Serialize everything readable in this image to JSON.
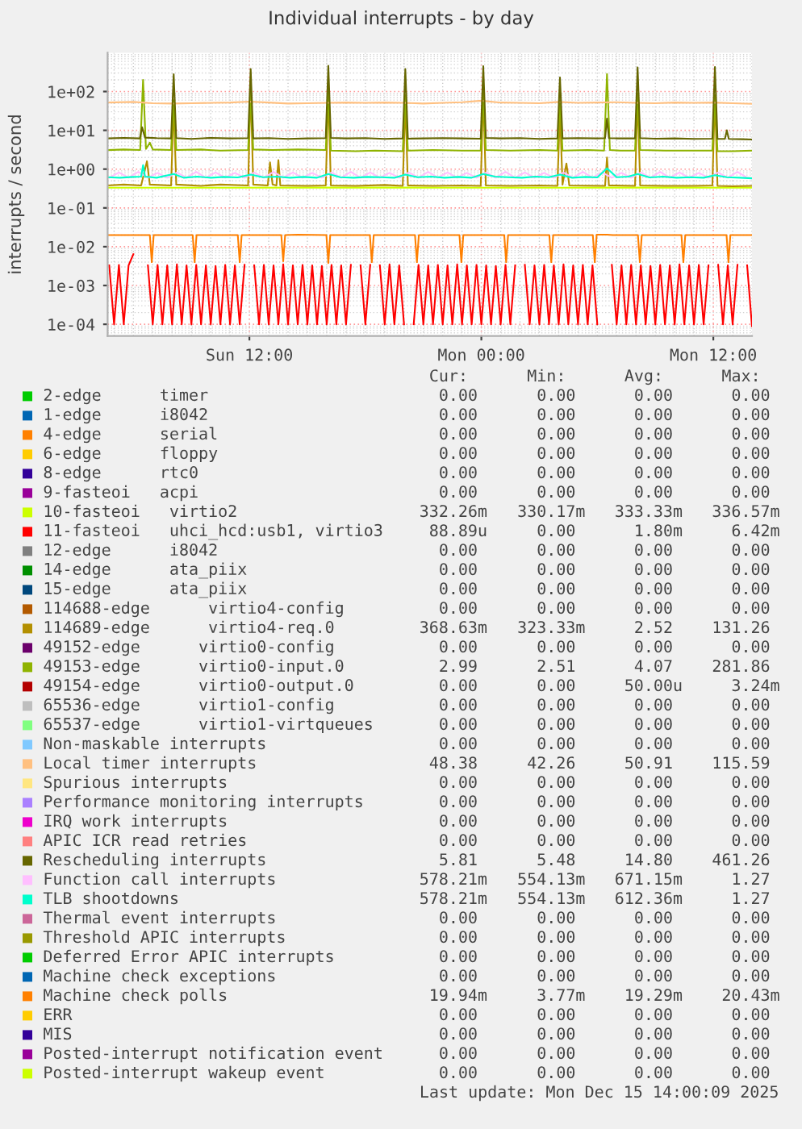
{
  "chart_data": {
    "type": "line",
    "title": "Individual interrupts - by day",
    "ylabel": "interrupts / second",
    "log": "y",
    "grid": true,
    "legend": "bottom",
    "xlim": [
      "2025-12-14T04:40",
      "2025-12-15T14:00"
    ],
    "xticks": [
      {
        "value": "2025-12-14T12:00",
        "label": "Sun 12:00"
      },
      {
        "value": "2025-12-15T00:00",
        "label": "Mon 00:00"
      },
      {
        "value": "2025-12-15T12:00",
        "label": "Mon 12:00"
      }
    ],
    "ylim": [
      5e-05,
      1000
    ],
    "yticks": [
      {
        "value": 0.0001,
        "label": "1e-04"
      },
      {
        "value": 0.001,
        "label": "1e-03"
      },
      {
        "value": 0.01,
        "label": "1e-02"
      },
      {
        "value": 0.1,
        "label": "1e-01"
      },
      {
        "value": 1,
        "label": "1e+00"
      },
      {
        "value": 10,
        "label": "1e+01"
      },
      {
        "value": 100,
        "label": "1e+02"
      }
    ],
    "series": [
      {
        "name": "2-edge      timer",
        "color": "#00cc00"
      },
      {
        "name": "1-edge      i8042",
        "color": "#0066b3"
      },
      {
        "name": "4-edge      serial",
        "color": "#ff8000"
      },
      {
        "name": "6-edge      floppy",
        "color": "#ffcc00"
      },
      {
        "name": "8-edge      rtc0",
        "color": "#330099"
      },
      {
        "name": "9-fasteoi   acpi",
        "color": "#990099"
      },
      {
        "name": "10-fasteoi   virtio2",
        "color": "#ccff00",
        "x": [
          "2025-12-14T04:40",
          "2025-12-14T10:00",
          "2025-12-14T16:00",
          "2025-12-14T22:00",
          "2025-12-15T04:00",
          "2025-12-15T10:00",
          "2025-12-15T14:00"
        ],
        "values": [
          0.333,
          0.332,
          0.334,
          0.333,
          0.333,
          0.334,
          0.3323
        ]
      },
      {
        "name": "11-fasteoi   uhci_hcd:usb1, virtio3",
        "color": "#ff0000",
        "x": [
          "2025-12-14T04:45",
          "2025-12-14T05:00",
          "2025-12-14T05:15",
          "2025-12-14T05:30",
          "2025-12-14T05:45",
          "2025-12-14T06:00",
          "2025-12-14T06:15",
          "2025-12-14T06:30",
          "2025-12-14T06:45",
          "2025-12-14T07:00",
          "2025-12-14T07:15",
          "2025-12-14T07:30",
          "2025-12-14T07:45",
          "2025-12-14T08:00",
          "2025-12-14T08:15",
          "2025-12-14T08:30",
          "2025-12-14T08:45",
          "2025-12-14T09:00",
          "2025-12-14T09:15",
          "2025-12-14T09:30",
          "2025-12-14T09:45",
          "2025-12-14T10:00",
          "2025-12-14T10:15",
          "2025-12-14T10:30",
          "2025-12-14T10:45",
          "2025-12-14T11:00",
          "2025-12-14T11:15",
          "2025-12-14T11:30",
          "2025-12-14T11:45",
          "2025-12-14T12:00",
          "2025-12-14T12:15",
          "2025-12-14T12:30",
          "2025-12-14T12:45",
          "2025-12-14T13:00",
          "2025-12-14T13:15",
          "2025-12-14T13:30",
          "2025-12-14T13:45",
          "2025-12-14T14:00",
          "2025-12-14T14:15",
          "2025-12-14T14:30",
          "2025-12-14T14:45",
          "2025-12-14T15:00",
          "2025-12-14T15:15",
          "2025-12-14T15:30",
          "2025-12-14T15:45",
          "2025-12-14T16:00",
          "2025-12-14T16:15",
          "2025-12-14T16:30",
          "2025-12-14T16:45",
          "2025-12-14T17:00",
          "2025-12-14T17:15",
          "2025-12-14T17:30",
          "2025-12-14T17:45",
          "2025-12-14T18:00",
          "2025-12-14T18:15",
          "2025-12-14T18:30",
          "2025-12-14T18:45",
          "2025-12-14T19:00",
          "2025-12-14T19:15",
          "2025-12-14T19:30",
          "2025-12-14T19:45",
          "2025-12-14T20:00",
          "2025-12-14T20:15",
          "2025-12-14T20:30",
          "2025-12-14T20:45",
          "2025-12-14T21:00",
          "2025-12-14T21:15",
          "2025-12-14T21:30",
          "2025-12-14T21:45",
          "2025-12-14T22:00",
          "2025-12-14T22:15",
          "2025-12-14T22:30",
          "2025-12-14T22:45",
          "2025-12-14T23:00",
          "2025-12-14T23:15",
          "2025-12-14T23:30",
          "2025-12-14T23:45",
          "2025-12-15T00:00",
          "2025-12-15T00:15",
          "2025-12-15T00:30",
          "2025-12-15T00:45",
          "2025-12-15T01:00",
          "2025-12-15T01:15",
          "2025-12-15T01:30",
          "2025-12-15T01:45",
          "2025-12-15T02:00",
          "2025-12-15T02:15",
          "2025-12-15T02:30",
          "2025-12-15T02:45",
          "2025-12-15T03:00",
          "2025-12-15T03:15",
          "2025-12-15T03:30",
          "2025-12-15T03:45",
          "2025-12-15T04:00",
          "2025-12-15T04:15",
          "2025-12-15T04:30",
          "2025-12-15T04:45",
          "2025-12-15T05:00",
          "2025-12-15T05:15",
          "2025-12-15T05:30",
          "2025-12-15T05:45",
          "2025-12-15T06:00",
          "2025-12-15T06:15",
          "2025-12-15T06:30",
          "2025-12-15T06:45",
          "2025-12-15T07:00",
          "2025-12-15T07:15",
          "2025-12-15T07:30",
          "2025-12-15T07:45",
          "2025-12-15T08:00",
          "2025-12-15T08:15",
          "2025-12-15T08:30",
          "2025-12-15T08:45",
          "2025-12-15T09:00",
          "2025-12-15T09:15",
          "2025-12-15T09:30",
          "2025-12-15T09:45",
          "2025-12-15T10:00",
          "2025-12-15T10:15",
          "2025-12-15T10:30",
          "2025-12-15T10:45",
          "2025-12-15T11:00",
          "2025-12-15T11:15",
          "2025-12-15T11:30",
          "2025-12-15T11:45",
          "2025-12-15T12:00",
          "2025-12-15T12:15",
          "2025-12-15T12:30",
          "2025-12-15T12:45",
          "2025-12-15T13:00",
          "2025-12-15T13:15",
          "2025-12-15T13:30",
          "2025-12-15T13:45",
          "2025-12-15T14:00"
        ],
        "values": [
          0.0033,
          0.0001,
          0.0034,
          0.0001,
          0.0033,
          0.00642,
          null,
          null,
          0.0033,
          0.0001,
          0.0034,
          0.0001,
          0.0033,
          0.0001,
          0.0035,
          0.0001,
          0.0033,
          0.0001,
          0.0034,
          0.0001,
          0.0033,
          0.0001,
          0.0032,
          0.0001,
          0.0034,
          0.0001,
          0.0033,
          0.0001,
          0.0034,
          null,
          0.0033,
          0.0001,
          0.0034,
          0.0001,
          0.0033,
          0.0001,
          0.0035,
          0.0001,
          0.0033,
          0.0001,
          0.0034,
          0.0001,
          0.0033,
          0.0001,
          0.0032,
          0.0001,
          0.0034,
          0.0001,
          0.0033,
          0.0001,
          0.0034,
          null,
          0.0033,
          0.0001,
          0.0034,
          null,
          0.0033,
          0.0001,
          0.0035,
          0.0001,
          0.0033,
          0.0001,
          null,
          0.0001,
          0.0034,
          0.0001,
          0.0033,
          0.0001,
          0.0034,
          0.0001,
          0.0033,
          0.0001,
          0.0035,
          0.0001,
          0.0033,
          0.0001,
          0.0034,
          0.0001,
          0.0033,
          0.0001,
          0.0032,
          0.0001,
          0.0034,
          0.0001,
          0.0033,
          null,
          0.0034,
          0.0001,
          0.0033,
          0.0001,
          0.0034,
          0.0001,
          0.0033,
          0.0001,
          0.0035,
          0.0001,
          0.0033,
          0.0001,
          0.0034,
          0.0001,
          0.0033,
          0.0001,
          null,
          null,
          0.0034,
          0.0001,
          0.0033,
          0.0001,
          0.0034,
          0.0001,
          0.0033,
          0.0001,
          0.0032,
          0.0001,
          0.0034,
          0.0001,
          0.0033,
          0.0001,
          0.0035,
          0.0001,
          0.0033,
          0.0001,
          0.0034,
          0.0001,
          0.0033,
          null,
          0.0034,
          0.0001,
          0.0033,
          0.0001,
          0.0034,
          null,
          0.0033,
          8.889e-05
        ]
      },
      {
        "name": "12-edge      i8042",
        "color": "#808080"
      },
      {
        "name": "14-edge      ata_piix",
        "color": "#008f00"
      },
      {
        "name": "15-edge      ata_piix",
        "color": "#00487d"
      },
      {
        "name": "114688-edge      virtio4-config",
        "color": "#b35a00"
      },
      {
        "name": "114689-edge      virtio4-req.0",
        "color": "#b38f00",
        "x": [
          "2025-12-14T04:40",
          "2025-12-14T05:30",
          "2025-12-14T06:24",
          "2025-12-14T06:42",
          "2025-12-14T06:51",
          "2025-12-14T07:57",
          "2025-12-14T08:05",
          "2025-12-14T08:13",
          "2025-12-14T09:30",
          "2025-12-14T10:30",
          "2025-12-14T11:56",
          "2025-12-14T12:04",
          "2025-12-14T12:12",
          "2025-12-14T12:57",
          "2025-12-14T13:04",
          "2025-12-14T13:12",
          "2025-12-14T13:24",
          "2025-12-14T13:30",
          "2025-12-14T13:36",
          "2025-12-14T15:00",
          "2025-12-14T15:57",
          "2025-12-14T16:05",
          "2025-12-14T16:13",
          "2025-12-14T17:30",
          "2025-12-14T19:00",
          "2025-12-14T19:56",
          "2025-12-14T20:04",
          "2025-12-14T20:12",
          "2025-12-14T21:30",
          "2025-12-14T23:00",
          "2025-12-14T23:58",
          "2025-12-15T00:06",
          "2025-12-15T00:14",
          "2025-12-15T01:30",
          "2025-12-15T03:00",
          "2025-12-15T03:56",
          "2025-12-15T04:04",
          "2025-12-15T04:12",
          "2025-12-15T04:24",
          "2025-12-15T04:33",
          "2025-12-15T06:24",
          "2025-12-15T06:30",
          "2025-12-15T06:36",
          "2025-12-15T07:57",
          "2025-12-15T08:05",
          "2025-12-15T08:13",
          "2025-12-15T09:30",
          "2025-12-15T11:00",
          "2025-12-15T11:57",
          "2025-12-15T12:05",
          "2025-12-15T12:13",
          "2025-12-15T13:00",
          "2025-12-15T14:00"
        ],
        "values": [
          0.38,
          0.4,
          0.38,
          1.6,
          0.4,
          0.38,
          50,
          0.4,
          0.37,
          0.4,
          0.38,
          131.26,
          0.4,
          0.38,
          1.5,
          0.4,
          0.38,
          1.7,
          0.38,
          0.37,
          0.38,
          100,
          0.38,
          0.37,
          0.39,
          0.37,
          60,
          0.38,
          0.37,
          0.38,
          0.37,
          100,
          0.38,
          0.37,
          0.38,
          0.37,
          30,
          0.4,
          1.4,
          0.38,
          0.37,
          2.0,
          0.38,
          0.37,
          80,
          0.38,
          0.37,
          0.37,
          0.38,
          80,
          0.37,
          0.36,
          0.3686
        ]
      },
      {
        "name": "49152-edge      virtio0-config",
        "color": "#6b006b"
      },
      {
        "name": "49153-edge      virtio0-input.0",
        "color": "#8fb300",
        "x": [
          "2025-12-14T04:40",
          "2025-12-14T05:30",
          "2025-12-14T06:21",
          "2025-12-14T06:30",
          "2025-12-14T06:39",
          "2025-12-14T06:51",
          "2025-12-14T07:00",
          "2025-12-14T07:57",
          "2025-12-14T08:05",
          "2025-12-14T08:13",
          "2025-12-14T09:30",
          "2025-12-14T10:30",
          "2025-12-14T11:56",
          "2025-12-14T12:04",
          "2025-12-14T12:12",
          "2025-12-14T13:12",
          "2025-12-14T14:30",
          "2025-12-14T15:57",
          "2025-12-14T16:05",
          "2025-12-14T16:13",
          "2025-12-14T17:30",
          "2025-12-14T18:30",
          "2025-12-14T19:56",
          "2025-12-14T20:04",
          "2025-12-14T20:12",
          "2025-12-14T21:30",
          "2025-12-14T23:00",
          "2025-12-14T23:58",
          "2025-12-15T00:06",
          "2025-12-15T00:14",
          "2025-12-15T01:30",
          "2025-12-15T03:00",
          "2025-12-15T03:56",
          "2025-12-15T04:04",
          "2025-12-15T04:12",
          "2025-12-15T05:30",
          "2025-12-15T06:21",
          "2025-12-15T06:30",
          "2025-12-15T06:39",
          "2025-12-15T07:12",
          "2025-12-15T07:57",
          "2025-12-15T08:05",
          "2025-12-15T08:13",
          "2025-12-15T09:30",
          "2025-12-15T11:00",
          "2025-12-15T11:57",
          "2025-12-15T12:05",
          "2025-12-15T12:13",
          "2025-12-15T13:00",
          "2025-12-15T14:00"
        ],
        "values": [
          3.1,
          3.2,
          3.1,
          200,
          3.3,
          4.8,
          3.2,
          3.1,
          60,
          3.1,
          3.2,
          3.0,
          3.1,
          90,
          3.2,
          3.1,
          3.2,
          3.1,
          100,
          3.0,
          2.9,
          3.0,
          2.9,
          80,
          3.0,
          3.1,
          3.0,
          3.0,
          100,
          3.1,
          3.0,
          3.1,
          3.0,
          60,
          3.0,
          3.1,
          3.0,
          281.86,
          3.1,
          3.0,
          3.0,
          90,
          3.1,
          3.0,
          3.0,
          3.0,
          80,
          2.9,
          2.9,
          2.99
        ]
      },
      {
        "name": "49154-edge      virtio0-output.0",
        "color": "#b30000"
      },
      {
        "name": "65536-edge      virtio1-config",
        "color": "#bebebe"
      },
      {
        "name": "65537-edge      virtio1-virtqueues",
        "color": "#80ff80"
      },
      {
        "name": "Non-maskable interrupts",
        "color": "#80c9ff"
      },
      {
        "name": "Local timer interrupts",
        "color": "#ffc080",
        "x": [
          "2025-12-14T04:40",
          "2025-12-14T06:00",
          "2025-12-14T07:00",
          "2025-12-14T08:00",
          "2025-12-14T09:00",
          "2025-12-14T10:00",
          "2025-12-14T11:00",
          "2025-12-14T12:00",
          "2025-12-14T13:00",
          "2025-12-14T14:00",
          "2025-12-14T15:00",
          "2025-12-14T16:00",
          "2025-12-14T17:00",
          "2025-12-14T18:00",
          "2025-12-14T19:00",
          "2025-12-14T20:00",
          "2025-12-14T21:00",
          "2025-12-14T22:00",
          "2025-12-14T23:00",
          "2025-12-15T00:00",
          "2025-12-15T01:00",
          "2025-12-15T02:00",
          "2025-12-15T03:00",
          "2025-12-15T04:00",
          "2025-12-15T05:00",
          "2025-12-15T06:00",
          "2025-12-15T07:00",
          "2025-12-15T08:00",
          "2025-12-15T09:00",
          "2025-12-15T10:00",
          "2025-12-15T11:00",
          "2025-12-15T12:00",
          "2025-12-15T13:00",
          "2025-12-15T14:00"
        ],
        "values": [
          52,
          54,
          50,
          49,
          50,
          51,
          52,
          55,
          52,
          49,
          50,
          51,
          52,
          51,
          52,
          51,
          49,
          51,
          53,
          58,
          52,
          51,
          50,
          54,
          51,
          52,
          53,
          51,
          50,
          52,
          51,
          52,
          50,
          48.38
        ]
      },
      {
        "name": "Spurious interrupts",
        "color": "#ffe680"
      },
      {
        "name": "Performance monitoring interrupts",
        "color": "#aa80ff"
      },
      {
        "name": "IRQ work interrupts",
        "color": "#ee00cc"
      },
      {
        "name": "APIC ICR read retries",
        "color": "#ff8080"
      },
      {
        "name": "Rescheduling interrupts",
        "color": "#666600",
        "x": [
          "2025-12-14T04:40",
          "2025-12-14T05:30",
          "2025-12-14T06:20",
          "2025-12-14T06:27",
          "2025-12-14T06:36",
          "2025-12-14T07:12",
          "2025-12-14T07:57",
          "2025-12-14T08:05",
          "2025-12-14T08:13",
          "2025-12-14T09:00",
          "2025-12-14T10:00",
          "2025-12-14T11:00",
          "2025-12-14T11:56",
          "2025-12-14T12:04",
          "2025-12-14T12:12",
          "2025-12-14T13:00",
          "2025-12-14T14:00",
          "2025-12-14T15:00",
          "2025-12-14T15:57",
          "2025-12-14T16:05",
          "2025-12-14T16:13",
          "2025-12-14T17:00",
          "2025-12-14T18:00",
          "2025-12-14T19:00",
          "2025-12-14T19:56",
          "2025-12-14T20:04",
          "2025-12-14T20:12",
          "2025-12-14T21:00",
          "2025-12-14T22:00",
          "2025-12-14T23:00",
          "2025-12-14T23:58",
          "2025-12-15T00:06",
          "2025-12-15T00:14",
          "2025-12-15T01:00",
          "2025-12-15T02:00",
          "2025-12-15T03:00",
          "2025-12-15T03:56",
          "2025-12-15T04:04",
          "2025-12-15T04:12",
          "2025-12-15T05:00",
          "2025-12-15T06:00",
          "2025-12-15T06:24",
          "2025-12-15T06:30",
          "2025-12-15T06:36",
          "2025-12-15T07:00",
          "2025-12-15T07:57",
          "2025-12-15T08:05",
          "2025-12-15T08:13",
          "2025-12-15T09:00",
          "2025-12-15T10:00",
          "2025-12-15T11:00",
          "2025-12-15T11:57",
          "2025-12-15T12:05",
          "2025-12-15T12:13",
          "2025-12-15T12:36",
          "2025-12-15T12:42",
          "2025-12-15T12:48",
          "2025-12-15T13:30",
          "2025-12-15T14:00"
        ],
        "values": [
          6.2,
          6.4,
          6.2,
          12,
          6.5,
          6.3,
          6.2,
          280,
          6.3,
          6.0,
          6.4,
          6.2,
          6.3,
          380,
          6.2,
          6.3,
          6.0,
          6.2,
          6.3,
          461.26,
          6.4,
          6.2,
          6.3,
          6.0,
          6.2,
          380,
          6.1,
          6.2,
          6.3,
          6.2,
          6.1,
          450,
          6.4,
          6.2,
          6.3,
          6.0,
          6.2,
          230,
          6.2,
          6.3,
          6.2,
          6.3,
          20,
          6.3,
          6.2,
          6.2,
          420,
          6.3,
          6.1,
          6.2,
          6.0,
          6.1,
          430,
          6.0,
          6.0,
          10,
          6.0,
          5.9,
          5.81
        ]
      },
      {
        "name": "Function call interrupts",
        "color": "#ffbfff",
        "x": [
          "2025-12-14T04:45",
          "2025-12-14T05:15",
          "2025-12-14T05:45",
          "2025-12-14T06:15",
          "2025-12-14T06:45",
          "2025-12-14T07:15",
          "2025-12-14T07:45",
          "2025-12-14T08:15",
          "2025-12-14T08:45",
          "2025-12-14T09:15",
          "2025-12-14T09:45",
          "2025-12-14T10:15",
          "2025-12-14T10:45",
          "2025-12-14T11:15",
          "2025-12-14T11:45",
          "2025-12-14T12:15",
          "2025-12-14T12:45",
          "2025-12-14T13:15",
          "2025-12-14T13:45",
          "2025-12-14T14:15",
          "2025-12-14T14:45",
          "2025-12-14T15:15",
          "2025-12-14T15:45",
          "2025-12-14T16:15",
          "2025-12-14T16:45",
          "2025-12-14T17:15",
          "2025-12-14T17:45",
          "2025-12-14T18:15",
          "2025-12-14T18:45",
          "2025-12-14T19:15",
          "2025-12-14T19:45",
          "2025-12-14T20:15",
          "2025-12-14T20:45",
          "2025-12-14T21:15",
          "2025-12-14T21:45",
          "2025-12-14T22:15",
          "2025-12-14T22:45",
          "2025-12-14T23:15",
          "2025-12-14T23:45",
          "2025-12-15T00:15",
          "2025-12-15T00:45",
          "2025-12-15T01:15",
          "2025-12-15T01:45",
          "2025-12-15T02:15",
          "2025-12-15T02:45",
          "2025-12-15T03:15",
          "2025-12-15T03:45",
          "2025-12-15T04:15",
          "2025-12-15T04:45",
          "2025-12-15T05:15",
          "2025-12-15T05:45",
          "2025-12-15T06:15",
          "2025-12-15T06:45",
          "2025-12-15T07:15",
          "2025-12-15T07:45",
          "2025-12-15T08:15",
          "2025-12-15T08:45",
          "2025-12-15T09:15",
          "2025-12-15T09:45",
          "2025-12-15T10:15",
          "2025-12-15T10:45",
          "2025-12-15T11:15",
          "2025-12-15T11:45",
          "2025-12-15T12:15",
          "2025-12-15T12:45",
          "2025-12-15T13:15",
          "2025-12-15T13:45",
          "2025-12-15T14:00"
        ],
        "values": [
          0.6,
          0.82,
          0.6,
          0.85,
          0.6,
          0.8,
          0.6,
          0.82,
          0.6,
          0.85,
          0.6,
          0.82,
          0.6,
          0.8,
          0.6,
          0.82,
          0.6,
          0.85,
          0.6,
          0.82,
          0.6,
          0.8,
          0.6,
          0.82,
          0.6,
          0.85,
          0.6,
          0.82,
          0.6,
          0.8,
          0.6,
          0.82,
          0.6,
          0.85,
          0.6,
          0.82,
          0.6,
          0.8,
          0.6,
          0.82,
          0.6,
          0.85,
          0.6,
          0.82,
          0.6,
          0.8,
          0.6,
          0.82,
          0.6,
          0.85,
          0.6,
          0.82,
          0.6,
          0.8,
          0.6,
          0.82,
          0.6,
          0.85,
          0.6,
          0.82,
          0.6,
          0.8,
          0.6,
          0.82,
          0.6,
          0.85,
          0.6,
          0.5782
        ]
      },
      {
        "name": "TLB shootdowns",
        "color": "#00ffcc",
        "x": [
          "2025-12-14T04:40",
          "2025-12-14T05:18",
          "2025-12-14T06:00",
          "2025-12-14T06:24",
          "2025-12-14T06:30",
          "2025-12-14T06:36",
          "2025-12-14T07:12",
          "2025-12-14T08:05",
          "2025-12-14T08:36",
          "2025-12-14T09:18",
          "2025-12-14T10:00",
          "2025-12-14T10:42",
          "2025-12-14T11:24",
          "2025-12-14T12:04",
          "2025-12-14T12:42",
          "2025-12-14T13:24",
          "2025-12-14T14:06",
          "2025-12-14T14:48",
          "2025-12-14T15:30",
          "2025-12-14T16:05",
          "2025-12-14T16:42",
          "2025-12-14T17:24",
          "2025-12-14T18:06",
          "2025-12-14T18:48",
          "2025-12-14T19:30",
          "2025-12-14T20:04",
          "2025-12-14T20:42",
          "2025-12-14T21:24",
          "2025-12-14T22:06",
          "2025-12-14T22:48",
          "2025-12-14T23:30",
          "2025-12-15T00:06",
          "2025-12-15T00:42",
          "2025-12-15T01:24",
          "2025-12-15T02:06",
          "2025-12-15T02:48",
          "2025-12-15T03:30",
          "2025-12-15T04:04",
          "2025-12-15T04:42",
          "2025-12-15T05:24",
          "2025-12-15T06:00",
          "2025-12-15T06:30",
          "2025-12-15T07:00",
          "2025-12-15T07:36",
          "2025-12-15T08:05",
          "2025-12-15T08:42",
          "2025-12-15T09:24",
          "2025-12-15T10:06",
          "2025-12-15T10:48",
          "2025-12-15T11:30",
          "2025-12-15T12:05",
          "2025-12-15T12:42",
          "2025-12-15T13:24",
          "2025-12-15T14:00"
        ],
        "values": [
          0.62,
          0.6,
          0.63,
          0.64,
          1.27,
          0.64,
          0.6,
          0.75,
          0.6,
          0.64,
          0.6,
          0.63,
          0.61,
          0.72,
          0.62,
          0.64,
          0.6,
          0.63,
          0.6,
          0.75,
          0.62,
          0.6,
          0.63,
          0.62,
          0.6,
          0.72,
          0.62,
          0.64,
          0.6,
          0.63,
          0.6,
          0.75,
          0.64,
          0.62,
          0.6,
          0.64,
          0.62,
          0.72,
          0.6,
          0.63,
          0.61,
          1.05,
          0.62,
          0.64,
          0.75,
          0.61,
          0.64,
          0.6,
          0.62,
          0.6,
          0.7,
          0.62,
          0.6,
          0.5782
        ]
      },
      {
        "name": "Thermal event interrupts",
        "color": "#cc6699"
      },
      {
        "name": "Threshold APIC interrupts",
        "color": "#999900"
      },
      {
        "name": "Deferred Error APIC interrupts",
        "color": "#00cc00"
      },
      {
        "name": "Machine check exceptions",
        "color": "#0066b3"
      },
      {
        "name": "Machine check polls",
        "color": "#ff8000",
        "x": [
          "2025-12-14T04:40",
          "2025-12-14T06:51",
          "2025-12-14T06:57",
          "2025-12-14T07:03",
          "2025-12-14T09:04",
          "2025-12-14T09:10",
          "2025-12-14T09:16",
          "2025-12-14T11:24",
          "2025-12-14T11:30",
          "2025-12-14T11:36",
          "2025-12-14T13:39",
          "2025-12-14T13:45",
          "2025-12-14T13:51",
          "2025-12-14T14:30",
          "2025-12-14T15:59",
          "2025-12-14T16:05",
          "2025-12-14T16:11",
          "2025-12-14T18:14",
          "2025-12-14T18:20",
          "2025-12-14T18:26",
          "2025-12-14T20:34",
          "2025-12-14T20:40",
          "2025-12-14T20:46",
          "2025-12-14T22:52",
          "2025-12-14T22:58",
          "2025-12-14T23:04",
          "2025-12-15T01:11",
          "2025-12-15T01:17",
          "2025-12-15T01:23",
          "2025-12-15T03:31",
          "2025-12-15T03:37",
          "2025-12-15T03:43",
          "2025-12-15T05:46",
          "2025-12-15T05:52",
          "2025-12-15T05:58",
          "2025-12-15T06:30",
          "2025-12-15T06:48",
          "2025-12-15T08:06",
          "2025-12-15T08:12",
          "2025-12-15T08:18",
          "2025-12-15T10:21",
          "2025-12-15T10:27",
          "2025-12-15T10:33",
          "2025-12-15T12:41",
          "2025-12-15T12:47",
          "2025-12-15T12:53",
          "2025-12-15T14:00"
        ],
        "values": [
          0.02,
          0.02,
          0.004,
          0.02,
          0.02,
          0.004,
          0.02,
          0.02,
          0.004,
          0.02,
          0.02,
          0.0042,
          0.02,
          0.0204,
          0.02,
          0.00377,
          0.02,
          0.02,
          0.004,
          0.02,
          0.02,
          0.004,
          0.02,
          0.02,
          0.004,
          0.02,
          0.02,
          0.004,
          0.02,
          0.02,
          0.004,
          0.02,
          0.02,
          0.004,
          0.0204,
          0.02043,
          0.02,
          0.02,
          0.004,
          0.02,
          0.02,
          0.004,
          0.02,
          0.02,
          0.004,
          0.02,
          0.01994
        ]
      },
      {
        "name": "ERR",
        "color": "#ffcc00"
      },
      {
        "name": "MIS",
        "color": "#330099"
      },
      {
        "name": "Posted-interrupt notification event",
        "color": "#990099"
      },
      {
        "name": "Posted-interrupt wakeup event",
        "color": "#ccff00"
      }
    ],
    "annotations": [
      "Cur:",
      "Min:",
      "Avg:",
      "Max:",
      "0.00",
      "0.00",
      "0.00",
      "0.00",
      "0.00",
      "0.00",
      "0.00",
      "0.00",
      "0.00",
      "0.00",
      "0.00",
      "0.00",
      "0.00",
      "0.00",
      "0.00",
      "0.00",
      "0.00",
      "0.00",
      "0.00",
      "0.00",
      "0.00",
      "0.00",
      "0.00",
      "0.00",
      "332.26m",
      "330.17m",
      "333.33m",
      "336.57m",
      "88.89u",
      "0.00",
      "1.80m",
      "6.42m",
      "0.00",
      "0.00",
      "0.00",
      "0.00",
      "0.00",
      "0.00",
      "0.00",
      "0.00",
      "0.00",
      "0.00",
      "0.00",
      "0.00",
      "0.00",
      "0.00",
      "0.00",
      "0.00",
      "368.63m",
      "323.33m",
      "2.52",
      "131.26",
      "0.00",
      "0.00",
      "0.00",
      "0.00",
      "2.99",
      "2.51",
      "4.07",
      "281.86",
      "0.00",
      "0.00",
      "50.00u",
      "3.24m",
      "0.00",
      "0.00",
      "0.00",
      "0.00",
      "0.00",
      "0.00",
      "0.00",
      "0.00",
      "0.00",
      "0.00",
      "0.00",
      "0.00",
      "48.38",
      "42.26",
      "50.91",
      "115.59",
      "0.00",
      "0.00",
      "0.00",
      "0.00",
      "0.00",
      "0.00",
      "0.00",
      "0.00",
      "0.00",
      "0.00",
      "0.00",
      "0.00",
      "0.00",
      "0.00",
      "0.00",
      "0.00",
      "5.81",
      "5.48",
      "14.80",
      "461.26",
      "578.21m",
      "554.13m",
      "671.15m",
      "1.27",
      "578.21m",
      "554.13m",
      "612.36m",
      "1.27",
      "0.00",
      "0.00",
      "0.00",
      "0.00",
      "0.00",
      "0.00",
      "0.00",
      "0.00",
      "0.00",
      "0.00",
      "0.00",
      "0.00",
      "0.00",
      "0.00",
      "0.00",
      "0.00",
      "19.94m",
      "3.77m",
      "19.29m",
      "20.43m",
      "0.00",
      "0.00",
      "0.00",
      "0.00",
      "0.00",
      "0.00",
      "0.00",
      "0.00",
      "0.00",
      "0.00",
      "0.00",
      "0.00",
      "0.00",
      "0.00",
      "0.00",
      "0.00",
      "Last update: Mon Dec 15 14:00:09 2025"
    ]
  }
}
